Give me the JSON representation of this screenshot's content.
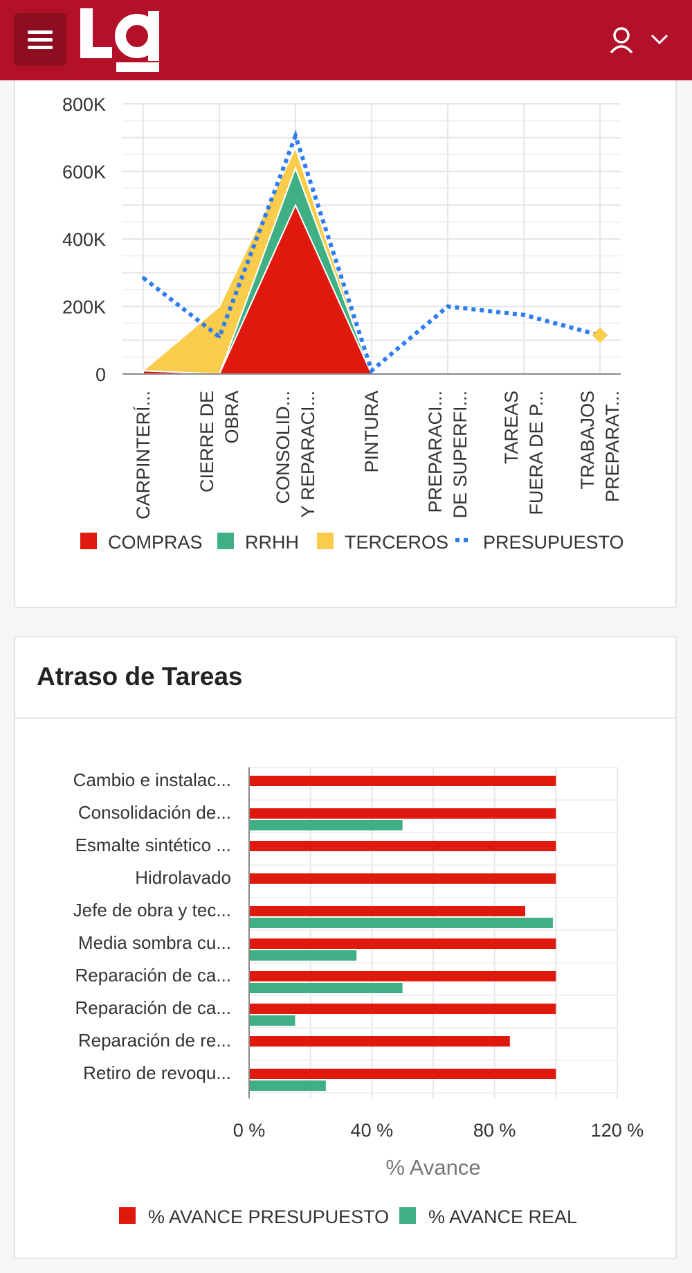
{
  "header": {
    "logo_text": "Lg"
  },
  "cost_chart": {
    "chart_data": {
      "type": "area",
      "categories": [
        "CARPINTERÍ...",
        "CIERRE DE OBRA",
        "CONSOLID... Y REPARACI...",
        "PINTURA",
        "PREPARACI... DE SUPERFI...",
        "TAREAS FUERA DE P...",
        "TRABAJOS PREPARAT..."
      ],
      "category_lines": [
        [
          "CARPINTERÍ..."
        ],
        [
          "CIERRE DE",
          "OBRA"
        ],
        [
          "CONSOLID...",
          "Y REPARACI..."
        ],
        [
          "PINTURA"
        ],
        [
          "PREPARACI...",
          "DE SUPERFI..."
        ],
        [
          "TAREAS",
          "FUERA DE P..."
        ],
        [
          "TRABAJOS",
          "PREPARAT..."
        ]
      ],
      "yticks": [
        "0",
        "200K",
        "400K",
        "600K",
        "800K"
      ],
      "ylim": [
        0,
        800000
      ],
      "stacked": true,
      "series": [
        {
          "name": "COMPRAS",
          "kind": "area",
          "color": "#e0190f",
          "values": [
            10000,
            0,
            500000,
            0,
            0,
            0,
            0
          ]
        },
        {
          "name": "RRHH",
          "kind": "area",
          "color": "#3fb083",
          "values": [
            0,
            0,
            110000,
            0,
            0,
            0,
            0
          ]
        },
        {
          "name": "TERCEROS",
          "kind": "area",
          "color": "#f9cd4b",
          "values": [
            0,
            200000,
            60000,
            0,
            0,
            0,
            0
          ]
        },
        {
          "name": "PRESUPUESTO",
          "kind": "line",
          "color": "#2e7df0",
          "values": [
            285000,
            110000,
            705000,
            10000,
            200000,
            175000,
            115000
          ]
        }
      ],
      "legend_position": "bottom",
      "grid": true
    }
  },
  "delay_chart": {
    "title": "Atraso de Tareas",
    "chart_data": {
      "type": "bar",
      "orientation": "horizontal",
      "categories": [
        "Cambio e instalac...",
        "Consolidación de...",
        "Esmalte sintético ...",
        "Hidrolavado",
        "Jefe de obra y tec...",
        "Media sombra cu...",
        "Reparación de ca...",
        "Reparación de ca...",
        "Reparación de re...",
        "Retiro de revoqu..."
      ],
      "series": [
        {
          "name": "% AVANCE PRESUPUESTO",
          "color": "#e0190f",
          "values": [
            100,
            100,
            100,
            100,
            90,
            100,
            100,
            100,
            85,
            100
          ]
        },
        {
          "name": "% AVANCE REAL",
          "color": "#3fb083",
          "values": [
            0,
            50,
            0,
            0,
            99,
            35,
            50,
            15,
            0,
            25
          ]
        }
      ],
      "xticks": [
        "0 %",
        "40 %",
        "80 %",
        "120 %"
      ],
      "xlim": [
        0,
        120
      ],
      "xlabel": "% Avance",
      "legend_position": "bottom",
      "grid": true
    }
  }
}
